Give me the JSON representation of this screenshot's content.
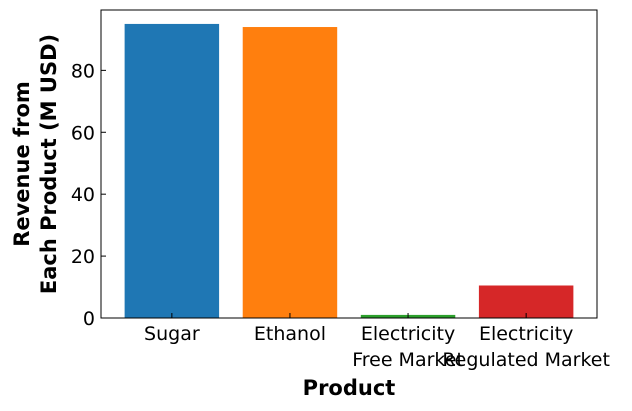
{
  "chart_data": {
    "type": "bar",
    "categories": [
      [
        "Sugar"
      ],
      [
        "Ethanol"
      ],
      [
        "Electricity",
        "Free Market"
      ],
      [
        "Electricity",
        "Regulated Market"
      ]
    ],
    "values": [
      95,
      94,
      1,
      10.5
    ],
    "colors": [
      "#1f77b4",
      "#ff7f0e",
      "#2ca02c",
      "#d62728"
    ],
    "xlabel": "Product",
    "ylabel": [
      "Revenue from",
      "Each Product (M USD)"
    ],
    "ylim": [
      0,
      99.5
    ],
    "yticks": [
      0,
      20,
      40,
      60,
      80
    ],
    "grid": false
  }
}
